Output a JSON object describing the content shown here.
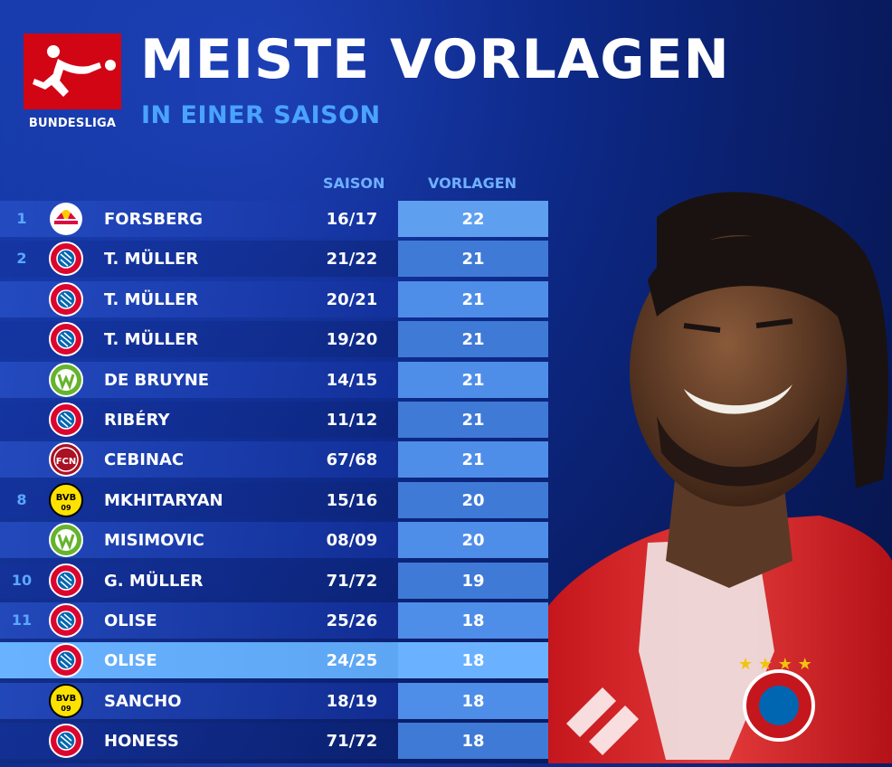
{
  "header": {
    "brand": "BUNDESLIGA",
    "title": "MEISTE VORLAGEN",
    "subtitle": "IN EINER SAISON"
  },
  "columns": {
    "season": "SAISON",
    "assists": "VORLAGEN"
  },
  "rows": [
    {
      "rank": "1",
      "club": "rb-leipzig-icon",
      "name": "FORSBERG",
      "season": "16/17",
      "assists": "22"
    },
    {
      "rank": "2",
      "club": "fc-bayern-icon",
      "name": "T. MÜLLER",
      "season": "21/22",
      "assists": "21"
    },
    {
      "rank": "",
      "club": "fc-bayern-icon",
      "name": "T. MÜLLER",
      "season": "20/21",
      "assists": "21"
    },
    {
      "rank": "",
      "club": "fc-bayern-icon",
      "name": "T. MÜLLER",
      "season": "19/20",
      "assists": "21"
    },
    {
      "rank": "",
      "club": "vfl-wolfsburg-icon",
      "name": "DE BRUYNE",
      "season": "14/15",
      "assists": "21"
    },
    {
      "rank": "",
      "club": "fc-bayern-icon",
      "name": "RIBÉRY",
      "season": "11/12",
      "assists": "21"
    },
    {
      "rank": "",
      "club": "fc-nuernberg-icon",
      "name": "CEBINAC",
      "season": "67/68",
      "assists": "21"
    },
    {
      "rank": "8",
      "club": "bvb-icon",
      "name": "MKHITARYAN",
      "season": "15/16",
      "assists": "20"
    },
    {
      "rank": "",
      "club": "vfl-wolfsburg-icon",
      "name": "MISIMOVIC",
      "season": "08/09",
      "assists": "20"
    },
    {
      "rank": "10",
      "club": "fc-bayern-icon",
      "name": "G. MÜLLER",
      "season": "71/72",
      "assists": "19"
    },
    {
      "rank": "11",
      "club": "fc-bayern-icon",
      "name": "OLISE",
      "season": "25/26",
      "assists": "18"
    },
    {
      "rank": "",
      "club": "fc-bayern-icon",
      "name": "OLISE",
      "season": "24/25",
      "assists": "18"
    },
    {
      "rank": "",
      "club": "bvb-icon",
      "name": "SANCHO",
      "season": "18/19",
      "assists": "18"
    },
    {
      "rank": "",
      "club": "fc-bayern-icon",
      "name": "HONESS",
      "season": "71/72",
      "assists": "18"
    }
  ],
  "highlight_row": 11,
  "colors": {
    "brand_red": "#d20515",
    "accent_blue": "#4aa3ff",
    "highlight": "#5ea6f2"
  }
}
